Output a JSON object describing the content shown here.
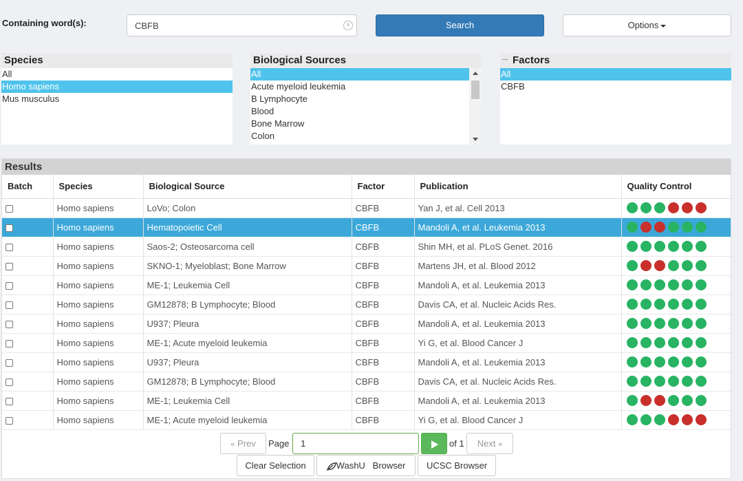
{
  "search": {
    "label": "Containing word(s):",
    "value": "CBFB",
    "clear_symbol": "×",
    "search_label": "Search",
    "options_label": "Options"
  },
  "species": {
    "title": "Species",
    "items": [
      {
        "label": "All",
        "selected": false
      },
      {
        "label": "Homo sapiens",
        "selected": true
      },
      {
        "label": "Mus musculus",
        "selected": false
      }
    ]
  },
  "bio_sources": {
    "title": "Biological Sources",
    "items": [
      {
        "label": "All",
        "selected": true
      },
      {
        "label": "Acute myeloid leukemia",
        "selected": false
      },
      {
        "label": "B Lymphocyte",
        "selected": false
      },
      {
        "label": "Blood",
        "selected": false
      },
      {
        "label": "Bone Marrow",
        "selected": false
      },
      {
        "label": "Colon",
        "selected": false
      }
    ]
  },
  "factors": {
    "title": "Factors",
    "items": [
      {
        "label": "All",
        "selected": true
      },
      {
        "label": "CBFB",
        "selected": false
      }
    ]
  },
  "results": {
    "title": "Results",
    "columns": [
      "Batch",
      "Species",
      "Biological Source",
      "Factor",
      "Publication",
      "Quality Control"
    ],
    "qc_colors": {
      "g": "#28b463",
      "r": "#c9302c"
    },
    "rows": [
      {
        "species": "Homo sapiens",
        "source": "LoVo; Colon",
        "factor": "CBFB",
        "publication": "Yan J, et al. Cell 2013",
        "qc": "gggrrr",
        "selected": false
      },
      {
        "species": "Homo sapiens",
        "source": "Hematopoietic Cell",
        "factor": "CBFB",
        "publication": "Mandoli A, et al. Leukemia 2013",
        "qc": "grrggg",
        "selected": true
      },
      {
        "species": "Homo sapiens",
        "source": "Saos-2; Osteosarcoma cell",
        "factor": "CBFB",
        "publication": "Shin MH, et al. PLoS Genet. 2016",
        "qc": "gggggg",
        "selected": false
      },
      {
        "species": "Homo sapiens",
        "source": "SKNO-1; Myeloblast; Bone Marrow",
        "factor": "CBFB",
        "publication": "Martens JH, et al. Blood 2012",
        "qc": "grrggg",
        "selected": false
      },
      {
        "species": "Homo sapiens",
        "source": "ME-1; Leukemia Cell",
        "factor": "CBFB",
        "publication": "Mandoli A, et al. Leukemia 2013",
        "qc": "gggggg",
        "selected": false
      },
      {
        "species": "Homo sapiens",
        "source": "GM12878; B Lymphocyte; Blood",
        "factor": "CBFB",
        "publication": "Davis CA, et al. Nucleic Acids Res.",
        "qc": "gggggg",
        "selected": false
      },
      {
        "species": "Homo sapiens",
        "source": "U937; Pleura",
        "factor": "CBFB",
        "publication": "Mandoli A, et al. Leukemia 2013",
        "qc": "gggggg",
        "selected": false
      },
      {
        "species": "Homo sapiens",
        "source": "ME-1; Acute myeloid leukemia",
        "factor": "CBFB",
        "publication": "Yi G, et al. Blood Cancer J",
        "qc": "gggggg",
        "selected": false
      },
      {
        "species": "Homo sapiens",
        "source": "U937; Pleura",
        "factor": "CBFB",
        "publication": "Mandoli A, et al. Leukemia 2013",
        "qc": "gggggg",
        "selected": false
      },
      {
        "species": "Homo sapiens",
        "source": "GM12878; B Lymphocyte; Blood",
        "factor": "CBFB",
        "publication": "Davis CA, et al. Nucleic Acids Res.",
        "qc": "gggggg",
        "selected": false
      },
      {
        "species": "Homo sapiens",
        "source": "ME-1; Leukemia Cell",
        "factor": "CBFB",
        "publication": "Mandoli A, et al. Leukemia 2013",
        "qc": "grrggg",
        "selected": false
      },
      {
        "species": "Homo sapiens",
        "source": "ME-1; Acute myeloid leukemia",
        "factor": "CBFB",
        "publication": "Yi G, et al. Blood Cancer J",
        "qc": "gggrrr",
        "selected": false
      }
    ]
  },
  "pager": {
    "prev_label": "Prev",
    "page_label": "Page",
    "page_value": "1",
    "of_label": "of 1",
    "next_label": "Next",
    "prev_icon": "«",
    "next_icon": "»"
  },
  "actions": {
    "clear_label": "Clear Selection",
    "washu_label": "WashU   Browser",
    "ucsc_label": "UCSC Browser"
  }
}
